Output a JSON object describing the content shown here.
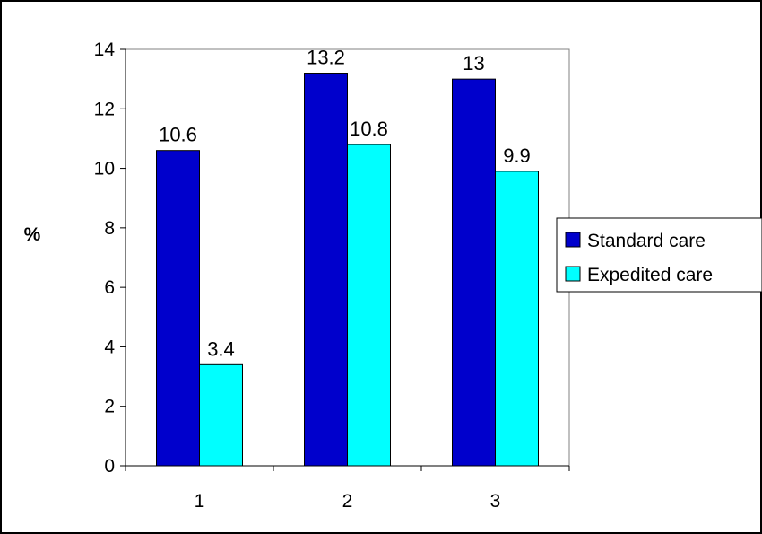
{
  "chart_data": {
    "type": "bar",
    "categories": [
      "1",
      "2",
      "3"
    ],
    "series": [
      {
        "name": "Standard care",
        "values": [
          10.6,
          13.2,
          13
        ],
        "labels": [
          "10.6",
          "13.2",
          "13"
        ]
      },
      {
        "name": "Expedited care",
        "values": [
          3.4,
          10.8,
          9.9
        ],
        "labels": [
          "3.4",
          "10.8",
          "9.9"
        ]
      }
    ],
    "title": "",
    "xlabel": "",
    "ylabel": "%",
    "ylim": [
      0,
      14
    ],
    "yticks": [
      "0",
      "2",
      "4",
      "6",
      "8",
      "10",
      "12",
      "14"
    ],
    "grid": false,
    "legend_position": "right",
    "colors": {
      "Standard care": "#0000cc",
      "Expedited care": "#00ffff"
    }
  }
}
